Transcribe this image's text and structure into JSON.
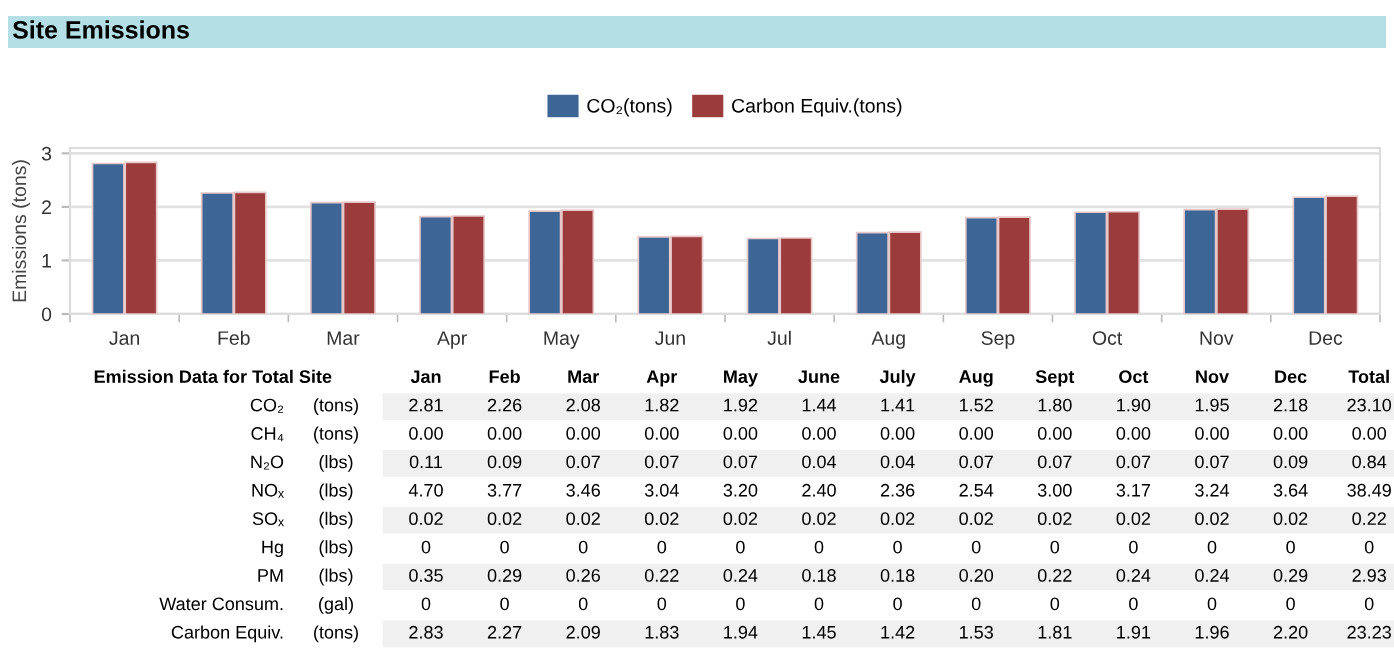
{
  "chart_data": [
    {
      "type": "bar",
      "title": "Site Emissions",
      "ylabel": "Emissions (tons)",
      "categories": [
        "Jan",
        "Feb",
        "Mar",
        "Apr",
        "May",
        "Jun",
        "Jul",
        "Aug",
        "Sep",
        "Oct",
        "Nov",
        "Dec"
      ],
      "series": [
        {
          "name": "CO₂(tons)",
          "color": "#3d6697",
          "values": [
            2.81,
            2.26,
            2.08,
            1.82,
            1.92,
            1.44,
            1.41,
            1.52,
            1.8,
            1.9,
            1.95,
            2.18
          ]
        },
        {
          "name": "Carbon Equiv.(tons)",
          "color": "#9c3b3b",
          "values": [
            2.83,
            2.27,
            2.09,
            1.83,
            1.94,
            1.45,
            1.42,
            1.53,
            1.81,
            1.91,
            1.96,
            2.2
          ]
        }
      ],
      "ylim": [
        0,
        3.1
      ],
      "yticks": [
        0,
        1,
        2,
        3
      ],
      "grid": "y",
      "legend": "top"
    },
    {
      "type": "other",
      "title": "Emission Data for Total Site",
      "categories": [
        "Jan",
        "Feb",
        "Mar",
        "Apr",
        "May",
        "June",
        "July",
        "Aug",
        "Sept",
        "Oct",
        "Nov",
        "Dec",
        "Total"
      ],
      "annotations": [
        "CO₂",
        "(tons)",
        "2.81",
        "2.26",
        "2.08",
        "1.82",
        "1.92",
        "1.44",
        "1.41",
        "1.52",
        "1.80",
        "1.90",
        "1.95",
        "2.18",
        "23.10",
        "CH₄",
        "(tons)",
        "0.00",
        "0.00",
        "0.00",
        "0.00",
        "0.00",
        "0.00",
        "0.00",
        "0.00",
        "0.00",
        "0.00",
        "0.00",
        "0.00",
        "0.00",
        "N₂O",
        "(lbs)",
        "0.11",
        "0.09",
        "0.07",
        "0.07",
        "0.07",
        "0.04",
        "0.04",
        "0.07",
        "0.07",
        "0.07",
        "0.07",
        "0.09",
        "0.84",
        "NOₓ",
        "(lbs)",
        "4.70",
        "3.77",
        "3.46",
        "3.04",
        "3.20",
        "2.40",
        "2.36",
        "2.54",
        "3.00",
        "3.17",
        "3.24",
        "3.64",
        "38.49",
        "SOₓ",
        "(lbs)",
        "0.02",
        "0.02",
        "0.02",
        "0.02",
        "0.02",
        "0.02",
        "0.02",
        "0.02",
        "0.02",
        "0.02",
        "0.02",
        "0.02",
        "0.22",
        "Hg",
        "(lbs)",
        "0",
        "0",
        "0",
        "0",
        "0",
        "0",
        "0",
        "0",
        "0",
        "0",
        "0",
        "0",
        "0",
        "PM",
        "(lbs)",
        "0.35",
        "0.29",
        "0.26",
        "0.22",
        "0.24",
        "0.18",
        "0.18",
        "0.20",
        "0.22",
        "0.24",
        "0.24",
        "0.29",
        "2.93",
        "Water Consum.",
        "(gal)",
        "0",
        "0",
        "0",
        "0",
        "0",
        "0",
        "0",
        "0",
        "0",
        "0",
        "0",
        "0",
        "0",
        "Carbon Equiv.",
        "(tons)",
        "2.83",
        "2.27",
        "2.09",
        "1.83",
        "1.94",
        "1.45",
        "1.42",
        "1.53",
        "1.81",
        "1.91",
        "1.96",
        "2.20",
        "23.23"
      ]
    }
  ]
}
